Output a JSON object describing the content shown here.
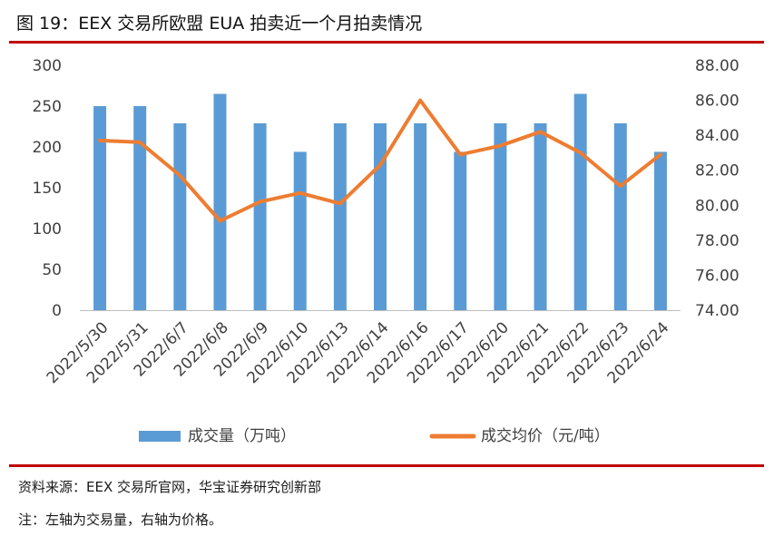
{
  "figure": {
    "title": "图 19：EEX 交易所欧盟 EUA 拍卖近一个月拍卖情况",
    "source": "资料来源：EEX 交易所官网，华宝证券研究创新部",
    "note": "注：左轴为交易量，右轴为价格。"
  },
  "chart_data": {
    "type": "bar",
    "title": "",
    "categories": [
      "2022/5/30",
      "2022/5/31",
      "2022/6/7",
      "2022/6/8",
      "2022/6/9",
      "2022/6/10",
      "2022/6/13",
      "2022/6/14",
      "2022/6/16",
      "2022/6/17",
      "2022/6/20",
      "2022/6/21",
      "2022/6/22",
      "2022/6/23",
      "2022/6/24"
    ],
    "series": [
      {
        "name": "成交量（万吨）",
        "type": "bar",
        "axis": "left",
        "color": "#5b9bd5",
        "values": [
          250,
          250,
          229,
          265,
          229,
          194,
          229,
          229,
          229,
          194,
          229,
          229,
          265,
          229,
          194
        ]
      },
      {
        "name": "成交均价（元/吨）",
        "type": "line",
        "axis": "right",
        "color": "#ed7d31",
        "values": [
          83.7,
          83.6,
          81.7,
          79.1,
          80.2,
          80.7,
          80.1,
          82.3,
          86.0,
          82.9,
          83.4,
          84.2,
          83.0,
          81.1,
          82.9
        ]
      }
    ],
    "y_left": {
      "min": 0,
      "max": 300,
      "ticks": [
        "0",
        "50",
        "100",
        "150",
        "200",
        "250",
        "300"
      ]
    },
    "y_right": {
      "min": 74,
      "max": 88,
      "ticks": [
        "74.00",
        "76.00",
        "78.00",
        "80.00",
        "82.00",
        "84.00",
        "86.00",
        "88.00"
      ]
    },
    "grid": false,
    "legend_position": "bottom"
  }
}
